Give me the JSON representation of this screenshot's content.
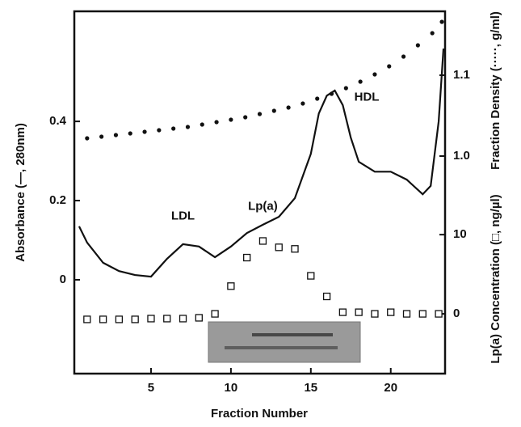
{
  "chart_data": {
    "type": "line",
    "x_label": "Fraction Number",
    "y_label": "Absorbance (—, 280nm)",
    "y2_label": "Fraction Density (·····, g/ml)",
    "y3_label": "Lp(a) Concentration (□, ng/µl)",
    "annotations": [
      {
        "text": "LDL",
        "x": 7,
        "y": 0.16
      },
      {
        "text": "Lp(a)",
        "x": 12,
        "y": 0.185
      },
      {
        "text": "HDL",
        "x": 18.5,
        "y": 0.46
      }
    ],
    "xlim": [
      0.2,
      23.4
    ],
    "xticks": [
      5,
      10,
      15,
      20
    ],
    "ylim": [
      -0.237,
      0.678
    ],
    "yticks": [
      0,
      0.2,
      0.4
    ],
    "y2lim": [
      0.731,
      1.179
    ],
    "y2ticks": [
      {
        "value": 1,
        "label": "1.0"
      },
      1.1
    ],
    "y3lim": [
      -7.55,
      38.2
    ],
    "y3ticks": [
      0,
      10
    ],
    "color": "#111111",
    "series": [
      {
        "axis": "y",
        "marker": "line",
        "x": [
          0.5,
          1,
          2,
          3,
          4,
          5,
          6,
          7,
          8,
          9,
          10,
          11,
          12,
          13,
          14,
          15,
          15.5,
          16,
          16.5,
          17,
          17.5,
          18,
          19,
          20,
          21,
          22,
          22.5,
          23,
          23.3
        ],
        "values": [
          0.135,
          0.094,
          0.043,
          0.022,
          0.012,
          0.008,
          0.053,
          0.09,
          0.084,
          0.057,
          0.084,
          0.118,
          0.139,
          0.159,
          0.206,
          0.318,
          0.42,
          0.465,
          0.478,
          0.441,
          0.359,
          0.298,
          0.273,
          0.273,
          0.253,
          0.216,
          0.237,
          0.4,
          0.584
        ]
      },
      {
        "axis": "y2",
        "marker": "dot",
        "x": [
          1,
          1.9,
          2.8,
          3.7,
          4.6,
          5.5,
          6.4,
          7.3,
          8.2,
          9.1,
          10,
          10.9,
          11.8,
          12.7,
          13.6,
          14.5,
          15.4,
          16.3,
          17.2,
          18.1,
          19,
          19.9,
          20.8,
          21.7,
          22.6,
          23.2
        ],
        "values": [
          1.022,
          1.024,
          1.026,
          1.028,
          1.03,
          1.032,
          1.034,
          1.036,
          1.039,
          1.042,
          1.045,
          1.048,
          1.052,
          1.056,
          1.06,
          1.065,
          1.071,
          1.077,
          1.084,
          1.092,
          1.101,
          1.111,
          1.123,
          1.137,
          1.152,
          1.166
        ]
      },
      {
        "axis": "y3",
        "marker": "square",
        "x": [
          1,
          2,
          3,
          4,
          5,
          6,
          7,
          8,
          9,
          10,
          11,
          12,
          13,
          14,
          15,
          16,
          17,
          18,
          19,
          20,
          21,
          22,
          23
        ],
        "values": [
          -0.7,
          -0.7,
          -0.7,
          -0.7,
          -0.6,
          -0.6,
          -0.6,
          -0.5,
          0,
          3.5,
          7.1,
          9.2,
          8.4,
          8.2,
          4.8,
          2.2,
          0.2,
          0.2,
          0,
          0.2,
          0,
          0,
          0
        ]
      }
    ]
  }
}
